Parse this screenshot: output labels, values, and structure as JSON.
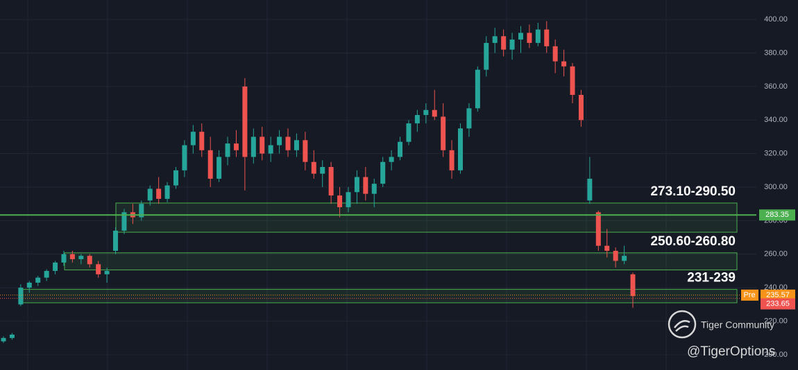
{
  "chart_data": {
    "type": "candlestick",
    "ylim": [
      190.9,
      411.6
    ],
    "yticks": [
      {
        "value": 200,
        "label": "200.00"
      },
      {
        "value": 220,
        "label": "220.00"
      },
      {
        "value": 240,
        "label": "240.00"
      },
      {
        "value": 260,
        "label": "260.00"
      },
      {
        "value": 280,
        "label": "280.00"
      },
      {
        "value": 300,
        "label": "300.00"
      },
      {
        "value": 320,
        "label": "320.00"
      },
      {
        "value": 340,
        "label": "340.00"
      },
      {
        "value": 360,
        "label": "360.00"
      },
      {
        "value": 380,
        "label": "380.00"
      },
      {
        "value": 400,
        "label": "400.00"
      }
    ],
    "grid": true,
    "up_color": "#26a69a",
    "down_color": "#ef5350",
    "open": [
      208,
      210,
      230,
      240,
      243,
      246,
      250,
      255,
      260,
      257,
      259,
      254,
      248,
      262,
      274,
      285,
      282,
      292,
      299,
      293,
      301,
      310,
      325,
      333,
      322,
      305,
      318,
      326,
      360,
      318,
      330,
      320,
      325,
      330,
      322,
      328,
      315,
      308,
      312,
      295,
      288,
      297,
      306,
      296,
      302,
      315,
      318,
      327,
      338,
      343,
      346,
      342,
      322,
      310,
      335,
      347,
      370,
      386,
      390,
      382,
      388,
      392,
      386,
      394,
      384,
      375,
      372,
      355,
      292,
      285,
      265,
      262,
      256,
      248
    ],
    "high": [
      211,
      213,
      242,
      244,
      247,
      251,
      256,
      262,
      262,
      260,
      260,
      256,
      252,
      276,
      287,
      290,
      292,
      301,
      306,
      303,
      312,
      328,
      337,
      338,
      330,
      322,
      330,
      334,
      365,
      335,
      336,
      330,
      334,
      335,
      332,
      333,
      322,
      316,
      315,
      300,
      300,
      310,
      312,
      305,
      318,
      322,
      330,
      340,
      346,
      350,
      358,
      350,
      328,
      338,
      350,
      372,
      390,
      395,
      394,
      392,
      396,
      397,
      398,
      399,
      388,
      382,
      374,
      358,
      318,
      286,
      275,
      264,
      265,
      249
    ],
    "low": [
      207,
      209,
      229,
      237,
      241,
      244,
      248,
      253,
      255,
      254,
      252,
      246,
      243,
      260,
      272,
      278,
      280,
      289,
      290,
      291,
      299,
      306,
      320,
      318,
      300,
      303,
      313,
      318,
      298,
      314,
      316,
      315,
      320,
      318,
      318,
      310,
      305,
      300,
      290,
      282,
      285,
      290,
      292,
      288,
      300,
      310,
      316,
      325,
      333,
      338,
      340,
      318,
      305,
      308,
      330,
      345,
      366,
      380,
      378,
      376,
      380,
      383,
      384,
      380,
      368,
      366,
      350,
      336,
      290,
      262,
      258,
      252,
      254,
      228
    ],
    "close": [
      210,
      212,
      240,
      243,
      246,
      250,
      255,
      260,
      257,
      259,
      254,
      248,
      250,
      274,
      285,
      282,
      290,
      299,
      293,
      301,
      310,
      325,
      333,
      322,
      305,
      318,
      326,
      322,
      318,
      330,
      320,
      325,
      330,
      322,
      328,
      315,
      308,
      312,
      295,
      288,
      297,
      306,
      296,
      302,
      315,
      318,
      327,
      338,
      343,
      346,
      342,
      322,
      310,
      335,
      347,
      370,
      386,
      390,
      382,
      388,
      392,
      386,
      394,
      384,
      375,
      372,
      355,
      340,
      305,
      265,
      262,
      256,
      259,
      235
    ],
    "zones": [
      {
        "label": "273.10-290.50",
        "low": 273.1,
        "high": 290.5
      },
      {
        "label": "250.60-260.80",
        "low": 250.6,
        "high": 260.8
      },
      {
        "label": "231-239",
        "low": 231,
        "high": 239
      }
    ],
    "last_price": 283.35,
    "pre_label": "Pre",
    "pre_price": 235.57,
    "prev_close": 233.65,
    "watermark": "Tiger Community",
    "handle": "@TigerOptions"
  }
}
